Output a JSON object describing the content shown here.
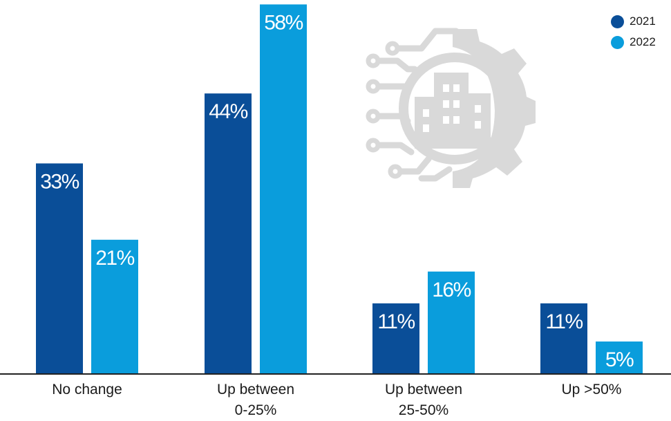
{
  "colors": {
    "series_2021": "#0a4e98",
    "series_2022": "#0a9ddc",
    "icon": "#d9d9d9",
    "axis": "#222222"
  },
  "decoration": {
    "icon": "gear-circuit-building-icon"
  },
  "chart_data": {
    "type": "bar",
    "title": "",
    "xlabel": "",
    "ylabel": "",
    "ylim": [
      0,
      60
    ],
    "grid": false,
    "legend_position": "top-right",
    "categories": [
      [
        "No change"
      ],
      [
        "Up between",
        "0-25%"
      ],
      [
        "Up between",
        "25-50%"
      ],
      [
        "Up >50%"
      ]
    ],
    "series": [
      {
        "name": "2021",
        "values": [
          33,
          44,
          11,
          11
        ],
        "labels": [
          "33%",
          "44%",
          "11%",
          "11%"
        ]
      },
      {
        "name": "2022",
        "values": [
          21,
          58,
          16,
          5
        ],
        "labels": [
          "21%",
          "58%",
          "16%",
          "5%"
        ]
      }
    ]
  }
}
